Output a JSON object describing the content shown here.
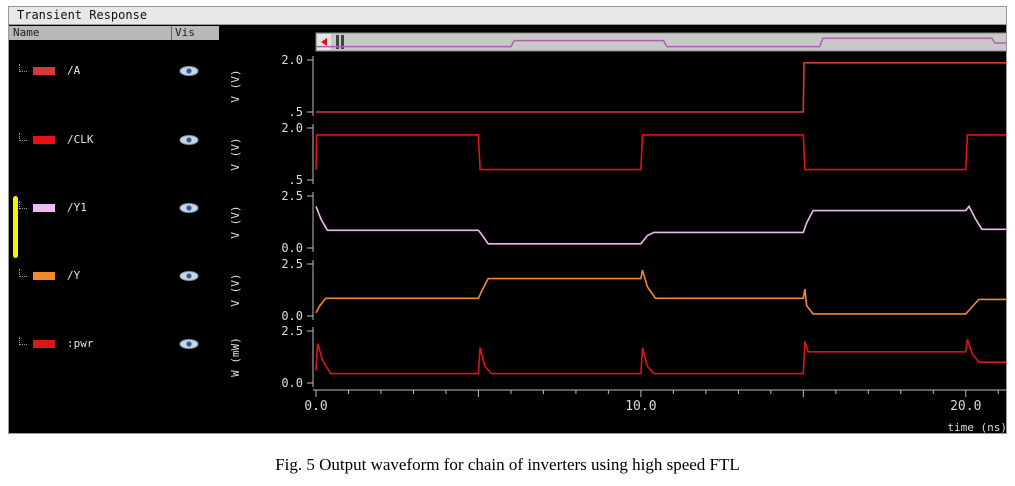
{
  "window": {
    "title": "Transient Response",
    "column_name": "Name",
    "column_vis": "Vis"
  },
  "signals": [
    {
      "label": "/A",
      "color": "#d43a3a"
    },
    {
      "label": "/CLK",
      "color": "#e81010"
    },
    {
      "label": "/Y1",
      "color": "#f2b8f2"
    },
    {
      "label": "/Y",
      "color": "#f08a2a"
    },
    {
      "label": ":pwr",
      "color": "#d81818"
    }
  ],
  "chart_data": {
    "type": "line",
    "xlabel": "time (ns)",
    "xlim": [
      0,
      21.3
    ],
    "x_ticks": [
      "0.0",
      "10.0",
      "20.0"
    ],
    "x_tick_values": [
      0,
      10,
      20
    ],
    "panels": [
      {
        "name": "/A",
        "ylabel": "V (V)",
        "ylim": [
          0.5,
          2.0
        ],
        "y_ticks": [
          "2.0",
          ".5"
        ],
        "y_tick_values": [
          2.0,
          0.5
        ],
        "color": "#d43a3a",
        "points": [
          [
            0,
            0.5
          ],
          [
            15,
            0.5
          ],
          [
            15.02,
            1.92
          ],
          [
            21.3,
            1.92
          ]
        ]
      },
      {
        "name": "/CLK",
        "ylabel": "V (V)",
        "ylim": [
          0.5,
          2.0
        ],
        "y_ticks": [
          "2.0",
          ".5"
        ],
        "y_tick_values": [
          2.0,
          0.5
        ],
        "color": "#e81010",
        "points": [
          [
            0,
            0.8
          ],
          [
            0.02,
            1.8
          ],
          [
            5,
            1.8
          ],
          [
            5.05,
            0.8
          ],
          [
            10,
            0.8
          ],
          [
            10.05,
            1.8
          ],
          [
            15,
            1.8
          ],
          [
            15.05,
            0.8
          ],
          [
            20,
            0.8
          ],
          [
            20.05,
            1.8
          ],
          [
            21.3,
            1.8
          ]
        ]
      },
      {
        "name": "/Y1",
        "ylabel": "V (V)",
        "ylim": [
          0.0,
          2.5
        ],
        "y_ticks": [
          "2.5",
          "0.0"
        ],
        "y_tick_values": [
          2.5,
          0.0
        ],
        "color": "#f2b8f2",
        "points": [
          [
            0,
            2.0
          ],
          [
            0.15,
            1.4
          ],
          [
            0.35,
            0.85
          ],
          [
            5,
            0.85
          ],
          [
            5.1,
            0.65
          ],
          [
            5.3,
            0.2
          ],
          [
            10,
            0.2
          ],
          [
            10.2,
            0.6
          ],
          [
            10.4,
            0.75
          ],
          [
            15,
            0.75
          ],
          [
            15.1,
            1.2
          ],
          [
            15.3,
            1.8
          ],
          [
            20,
            1.8
          ],
          [
            20.1,
            2.0
          ],
          [
            20.3,
            1.4
          ],
          [
            20.5,
            0.9
          ],
          [
            21.3,
            0.9
          ]
        ]
      },
      {
        "name": "/Y",
        "ylabel": "V (V)",
        "ylim": [
          0.0,
          2.5
        ],
        "y_ticks": [
          "2.5",
          "0.0"
        ],
        "y_tick_values": [
          2.5,
          0.0
        ],
        "color": "#f08a2a",
        "points": [
          [
            0,
            0.15
          ],
          [
            0.1,
            0.45
          ],
          [
            0.3,
            0.85
          ],
          [
            5,
            0.85
          ],
          [
            5.1,
            1.2
          ],
          [
            5.3,
            1.8
          ],
          [
            10,
            1.8
          ],
          [
            10.05,
            2.2
          ],
          [
            10.2,
            1.4
          ],
          [
            10.45,
            0.85
          ],
          [
            15,
            0.85
          ],
          [
            15.05,
            1.3
          ],
          [
            15.1,
            0.5
          ],
          [
            15.3,
            0.1
          ],
          [
            20,
            0.1
          ],
          [
            20.2,
            0.45
          ],
          [
            20.4,
            0.8
          ],
          [
            21.3,
            0.8
          ]
        ]
      },
      {
        "name": ":pwr",
        "ylabel": "W (mW)",
        "ylim": [
          0.0,
          2.5
        ],
        "y_ticks": [
          "2.5",
          "0.0"
        ],
        "y_tick_values": [
          2.5,
          0.0
        ],
        "color": "#d81818",
        "points": [
          [
            0,
            0.6
          ],
          [
            0.05,
            1.9
          ],
          [
            0.2,
            1.1
          ],
          [
            0.45,
            0.45
          ],
          [
            5,
            0.45
          ],
          [
            5.05,
            1.7
          ],
          [
            5.2,
            0.8
          ],
          [
            5.4,
            0.45
          ],
          [
            10,
            0.45
          ],
          [
            10.05,
            1.7
          ],
          [
            10.2,
            0.8
          ],
          [
            10.4,
            0.45
          ],
          [
            15,
            0.45
          ],
          [
            15.05,
            2.0
          ],
          [
            15.15,
            1.5
          ],
          [
            20,
            1.5
          ],
          [
            20.05,
            2.1
          ],
          [
            20.2,
            1.4
          ],
          [
            20.4,
            1.0
          ],
          [
            21.3,
            1.0
          ]
        ]
      }
    ],
    "overview_points": [
      [
        0,
        0.2
      ],
      [
        6,
        0.2
      ],
      [
        6.1,
        0.7
      ],
      [
        10.7,
        0.7
      ],
      [
        10.8,
        0.2
      ],
      [
        15.5,
        0.2
      ],
      [
        15.6,
        0.9
      ],
      [
        20.8,
        0.9
      ],
      [
        20.9,
        0.5
      ],
      [
        21.3,
        0.5
      ]
    ]
  },
  "caption": "Fig. 5 Output waveform for chain of inverters using high speed FTL"
}
